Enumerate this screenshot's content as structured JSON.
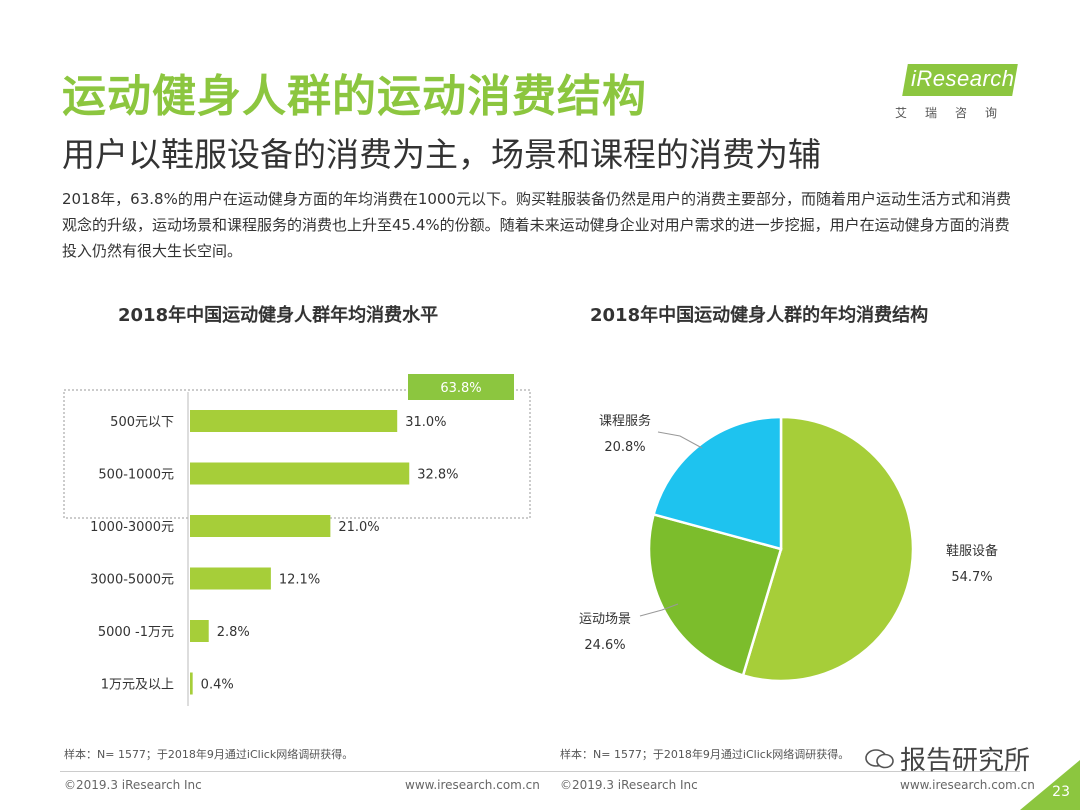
{
  "header": {
    "title": "运动健身人群的运动消费结构",
    "subtitle": "用户以鞋服设备的消费为主，场景和课程的消费为辅",
    "description": "2018年，63.8%的用户在运动健身方面的年均消费在1000元以下。购买鞋服装备仍然是用户的消费主要部分，而随着用户运动生活方式和消费观念的升级，运动场景和课程服务的消费也上升至45.4%的份额。随着未来运动健身企业对用户需求的进一步挖掘，用户在运动健身方面的消费投入仍然有很大生长空间。"
  },
  "logo": {
    "brand": "iResearch",
    "brand_cn": "艾瑞咨询"
  },
  "colors": {
    "accent": "#8cc63f",
    "bar": "#a6ce39",
    "pie_green": "#a6ce39",
    "pie_mid": "#7cbd2c",
    "pie_blue": "#1ec3ef"
  },
  "chart_data": [
    {
      "type": "bar",
      "orientation": "horizontal",
      "title": "2018年中国运动健身人群年均消费水平",
      "categories": [
        "500元以下",
        "500-1000元",
        "1000-3000元",
        "3000-5000元",
        "5000 -1万元",
        "1万元及以上"
      ],
      "values": [
        31.0,
        32.8,
        21.0,
        12.1,
        2.8,
        0.4
      ],
      "value_labels": [
        "31.0%",
        "32.8%",
        "21.0%",
        "12.1%",
        "2.8%",
        "0.4%"
      ],
      "unit": "%",
      "xlim": [
        0,
        45
      ],
      "highlight": {
        "label": "63.8%",
        "categories": [
          "500元以下",
          "500-1000元"
        ]
      },
      "source": "样本：N= 1577；于2018年9月通过iClick网络调研获得。"
    },
    {
      "type": "pie",
      "title": "2018年中国运动健身人群的年均消费结构",
      "labels": [
        "鞋服设备",
        "运动场景",
        "课程服务"
      ],
      "values": [
        54.7,
        24.6,
        20.8
      ],
      "value_labels": [
        "54.7%",
        "24.6%",
        "20.8%"
      ],
      "source": "样本：N= 1577；于2018年9月通过iClick网络调研获得。"
    }
  ],
  "footer": {
    "copyright": "©2019.3  iResearch Inc",
    "url": "www.iresearch.com.cn",
    "watermark": "报告研究所",
    "page": "23"
  }
}
